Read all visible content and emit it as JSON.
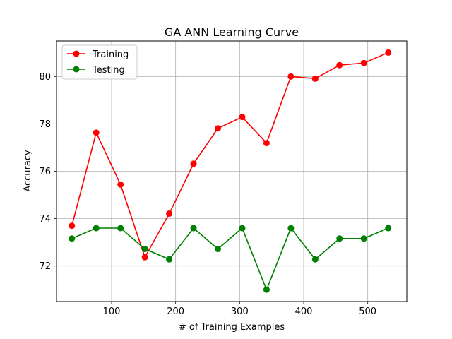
{
  "chart_data": {
    "type": "line",
    "title": "GA ANN Learning Curve",
    "xlabel": "# of Training Examples",
    "ylabel": "Accuracy",
    "xlim": [
      14,
      561
    ],
    "ylim": [
      70.5,
      81.5
    ],
    "xticks": [
      100,
      200,
      300,
      400,
      500
    ],
    "yticks": [
      72,
      74,
      76,
      78,
      80
    ],
    "grid": true,
    "legend_position": "top-left",
    "x": [
      38,
      76,
      114,
      152,
      190,
      228,
      266,
      304,
      342,
      380,
      418,
      456,
      494,
      532
    ],
    "series": [
      {
        "name": "Training",
        "color": "#ff0000",
        "marker": "circle",
        "values": [
          73.7,
          77.63,
          75.44,
          72.37,
          74.21,
          76.32,
          77.81,
          78.29,
          77.19,
          80.0,
          79.91,
          80.48,
          80.57,
          81.01
        ]
      },
      {
        "name": "Testing",
        "color": "#008000",
        "marker": "circle",
        "values": [
          73.16,
          73.6,
          73.6,
          72.72,
          72.28,
          73.6,
          72.72,
          73.6,
          71.0,
          73.6,
          72.28,
          73.16,
          73.16,
          73.6
        ]
      }
    ]
  }
}
